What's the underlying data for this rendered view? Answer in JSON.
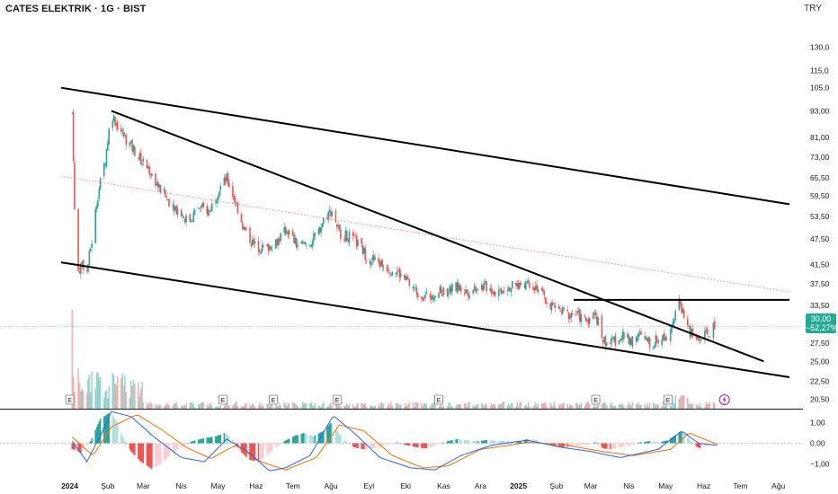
{
  "header": {
    "title": "CATES ELEKTRIK · 1G · BIST",
    "currency": "TRY"
  },
  "price_tag": {
    "price": "30,00",
    "change": "−52,27%"
  },
  "chart_data": [
    {
      "type": "candlestick",
      "title": "CATES ELEKTRIK · 1G · BIST",
      "scale": "log",
      "y_ticks": [
        "130,0",
        "115,0",
        "105,0",
        "93,00",
        "81,00",
        "73,00",
        "65,50",
        "59,50",
        "53,50",
        "47,50",
        "41,50",
        "37,50",
        "33,50",
        "30,00",
        "27,50",
        "25,00",
        "22,50",
        "20,50"
      ],
      "y_tick_values": [
        130,
        115,
        105,
        93,
        81,
        73,
        65.5,
        59.5,
        53.5,
        47.5,
        41.5,
        37.5,
        33.5,
        30,
        27.5,
        25,
        22.5,
        20.5
      ],
      "ylim": [
        19.5,
        150
      ],
      "x_ticks": [
        "2024",
        "Şub",
        "Mar",
        "Nis",
        "May",
        "Haz",
        "Tem",
        "Ağu",
        "Eyl",
        "Eki",
        "Kas",
        "Ara",
        "2025",
        "Şub",
        "Mar",
        "Nis",
        "May",
        "Haz",
        "Tem",
        "Ağu"
      ],
      "last_price": 30.0,
      "change_pct": -52.27,
      "price_path": [
        [
          "2024-01-03",
          92
        ],
        [
          "2024-01-05",
          55
        ],
        [
          "2024-01-08",
          40
        ],
        [
          "2024-01-11",
          42
        ],
        [
          "2024-01-15",
          40
        ],
        [
          "2024-01-19",
          47
        ],
        [
          "2024-01-24",
          60
        ],
        [
          "2024-01-30",
          72
        ],
        [
          "2024-02-04",
          92
        ],
        [
          "2024-02-10",
          85
        ],
        [
          "2024-02-16",
          80
        ],
        [
          "2024-02-22",
          76
        ],
        [
          "2024-02-28",
          72
        ],
        [
          "2024-03-06",
          68
        ],
        [
          "2024-03-14",
          62
        ],
        [
          "2024-03-22",
          58
        ],
        [
          "2024-03-30",
          55
        ],
        [
          "2024-04-07",
          52
        ],
        [
          "2024-04-15",
          56
        ],
        [
          "2024-04-24",
          55
        ],
        [
          "2024-05-02",
          62
        ],
        [
          "2024-05-08",
          65
        ],
        [
          "2024-05-15",
          58
        ],
        [
          "2024-05-22",
          50
        ],
        [
          "2024-05-30",
          46
        ],
        [
          "2024-06-08",
          45
        ],
        [
          "2024-06-18",
          47
        ],
        [
          "2024-06-26",
          50
        ],
        [
          "2024-07-04",
          46
        ],
        [
          "2024-07-12",
          46
        ],
        [
          "2024-07-20",
          48
        ],
        [
          "2024-07-28",
          54
        ],
        [
          "2024-08-02",
          55
        ],
        [
          "2024-08-08",
          49
        ],
        [
          "2024-08-16",
          48
        ],
        [
          "2024-08-24",
          46
        ],
        [
          "2024-08-31",
          43
        ],
        [
          "2024-09-08",
          42
        ],
        [
          "2024-09-16",
          41
        ],
        [
          "2024-09-24",
          40
        ],
        [
          "2024-10-02",
          38
        ],
        [
          "2024-10-10",
          36
        ],
        [
          "2024-10-18",
          35
        ],
        [
          "2024-10-26",
          36
        ],
        [
          "2024-11-03",
          36
        ],
        [
          "2024-11-12",
          37
        ],
        [
          "2024-11-20",
          36
        ],
        [
          "2024-11-28",
          37
        ],
        [
          "2024-12-06",
          37
        ],
        [
          "2024-12-14",
          36
        ],
        [
          "2024-12-22",
          37
        ],
        [
          "2024-12-30",
          37
        ],
        [
          "2025-01-08",
          38
        ],
        [
          "2025-01-16",
          37
        ],
        [
          "2025-01-24",
          34
        ],
        [
          "2025-02-01",
          33
        ],
        [
          "2025-02-09",
          32
        ],
        [
          "2025-02-17",
          32
        ],
        [
          "2025-02-25",
          31
        ],
        [
          "2025-03-05",
          32
        ],
        [
          "2025-03-11",
          28
        ],
        [
          "2025-03-17",
          27.5
        ],
        [
          "2025-03-25",
          28.5
        ],
        [
          "2025-04-02",
          28
        ],
        [
          "2025-04-10",
          28.5
        ],
        [
          "2025-04-18",
          27.5
        ],
        [
          "2025-04-25",
          28
        ],
        [
          "2025-05-01",
          28.5
        ],
        [
          "2025-05-07",
          31
        ],
        [
          "2025-05-12",
          34
        ],
        [
          "2025-05-16",
          32
        ],
        [
          "2025-05-21",
          29
        ],
        [
          "2025-05-27",
          28
        ],
        [
          "2025-06-01",
          28.5
        ],
        [
          "2025-06-06",
          29
        ],
        [
          "2025-06-10",
          30
        ]
      ],
      "trend_lines": [
        {
          "name": "upper",
          "from": [
            "2023-12-25",
            105
          ],
          "to": [
            "2025-08-10",
            57
          ]
        },
        {
          "name": "lower",
          "from": [
            "2023-12-25",
            42
          ],
          "to": [
            "2025-08-10",
            23
          ]
        },
        {
          "name": "mid_dotted",
          "from": [
            "2023-12-25",
            66
          ],
          "to": [
            "2025-08-10",
            36
          ]
        },
        {
          "name": "steep",
          "from": [
            "2024-02-04",
            93
          ],
          "to": [
            "2025-07-20",
            25
          ]
        },
        {
          "name": "horizontal",
          "from": [
            "2025-02-15",
            34.5
          ],
          "to": [
            "2025-08-10",
            34.5
          ]
        }
      ],
      "earnings_markers": [
        "2024-01-01",
        "2024-05-05",
        "2024-06-15",
        "2024-08-06",
        "2024-10-28",
        "2025-03-05",
        "2025-05-03"
      ],
      "dividend_marker": "2025-06-18"
    },
    {
      "type": "macd",
      "y_ticks": [
        "1,00",
        "0,00",
        "−1,00"
      ],
      "y_tick_values": [
        1,
        0,
        -1
      ],
      "ylim": [
        -1.6,
        1.6
      ],
      "histogram": [
        [
          "2024-01-04",
          -0.3
        ],
        [
          "2024-01-10",
          -0.45
        ],
        [
          "2024-01-18",
          0.1
        ],
        [
          "2024-01-26",
          1.2
        ],
        [
          "2024-02-03",
          1.5
        ],
        [
          "2024-02-08",
          1.1
        ],
        [
          "2024-02-14",
          0.2
        ],
        [
          "2024-02-20",
          -0.4
        ],
        [
          "2024-02-28",
          -0.9
        ],
        [
          "2024-03-08",
          -1.25
        ],
        [
          "2024-03-16",
          -1.0
        ],
        [
          "2024-03-24",
          -0.5
        ],
        [
          "2024-04-01",
          -0.2
        ],
        [
          "2024-04-10",
          0.1
        ],
        [
          "2024-04-20",
          0.25
        ],
        [
          "2024-04-30",
          0.35
        ],
        [
          "2024-05-06",
          0.5
        ],
        [
          "2024-05-12",
          0.25
        ],
        [
          "2024-05-18",
          -0.3
        ],
        [
          "2024-05-26",
          -0.8
        ],
        [
          "2024-06-03",
          -0.9
        ],
        [
          "2024-06-10",
          -0.6
        ],
        [
          "2024-06-17",
          -0.2
        ],
        [
          "2024-06-24",
          0.1
        ],
        [
          "2024-07-02",
          0.35
        ],
        [
          "2024-07-10",
          0.5
        ],
        [
          "2024-07-18",
          0.35
        ],
        [
          "2024-07-26",
          0.6
        ],
        [
          "2024-08-01",
          1.0
        ],
        [
          "2024-08-06",
          0.6
        ],
        [
          "2024-08-12",
          0.15
        ],
        [
          "2024-08-20",
          -0.2
        ],
        [
          "2024-08-28",
          -0.3
        ],
        [
          "2024-09-06",
          -0.25
        ],
        [
          "2024-09-15",
          -0.1
        ],
        [
          "2024-09-24",
          0.05
        ],
        [
          "2024-10-02",
          -0.1
        ],
        [
          "2024-10-10",
          -0.2
        ],
        [
          "2024-10-18",
          -0.25
        ],
        [
          "2024-10-26",
          -0.1
        ],
        [
          "2024-11-04",
          0.1
        ],
        [
          "2024-11-12",
          0.2
        ],
        [
          "2024-11-20",
          0.15
        ],
        [
          "2024-11-28",
          0.1
        ],
        [
          "2024-12-06",
          0.15
        ],
        [
          "2024-12-14",
          0.12
        ],
        [
          "2024-12-22",
          0.1
        ],
        [
          "2024-12-30",
          0.05
        ],
        [
          "2025-01-08",
          0.2
        ],
        [
          "2025-01-16",
          0.15
        ],
        [
          "2025-01-24",
          -0.05
        ],
        [
          "2025-02-01",
          -0.15
        ],
        [
          "2025-02-09",
          -0.2
        ],
        [
          "2025-02-17",
          -0.12
        ],
        [
          "2025-02-25",
          -0.1
        ],
        [
          "2025-03-05",
          0.05
        ],
        [
          "2025-03-11",
          -0.25
        ],
        [
          "2025-03-17",
          -0.3
        ],
        [
          "2025-03-25",
          -0.2
        ],
        [
          "2025-04-02",
          -0.1
        ],
        [
          "2025-04-10",
          0.05
        ],
        [
          "2025-04-18",
          0.1
        ],
        [
          "2025-04-26",
          0.05
        ],
        [
          "2025-05-03",
          0.15
        ],
        [
          "2025-05-09",
          0.4
        ],
        [
          "2025-05-14",
          0.55
        ],
        [
          "2025-05-19",
          0.3
        ],
        [
          "2025-05-24",
          -0.1
        ],
        [
          "2025-05-29",
          -0.25
        ],
        [
          "2025-06-03",
          -0.15
        ],
        [
          "2025-06-08",
          0.02
        ],
        [
          "2025-06-12",
          0.05
        ]
      ],
      "macd_line": [
        [
          "2024-01-03",
          0.1
        ],
        [
          "2024-01-15",
          -0.9
        ],
        [
          "2024-01-28",
          0.6
        ],
        [
          "2024-02-04",
          1.55
        ],
        [
          "2024-02-20",
          1.3
        ],
        [
          "2024-03-10",
          0.3
        ],
        [
          "2024-04-01",
          -0.7
        ],
        [
          "2024-04-20",
          -0.9
        ],
        [
          "2024-05-08",
          0.2
        ],
        [
          "2024-05-25",
          -0.4
        ],
        [
          "2024-06-12",
          -1.35
        ],
        [
          "2024-06-25",
          -1.2
        ],
        [
          "2024-07-15",
          -0.6
        ],
        [
          "2024-08-03",
          1.35
        ],
        [
          "2024-08-20",
          0.5
        ],
        [
          "2024-09-10",
          -0.7
        ],
        [
          "2024-10-05",
          -1.2
        ],
        [
          "2024-10-25",
          -1.3
        ],
        [
          "2024-11-15",
          -0.6
        ],
        [
          "2024-12-10",
          -0.1
        ],
        [
          "2025-01-08",
          0.15
        ],
        [
          "2025-02-05",
          -0.2
        ],
        [
          "2025-03-01",
          -0.4
        ],
        [
          "2025-03-25",
          -0.7
        ],
        [
          "2025-04-25",
          -0.3
        ],
        [
          "2025-05-14",
          0.6
        ],
        [
          "2025-05-28",
          0.0
        ],
        [
          "2025-06-12",
          -0.1
        ]
      ],
      "signal_line": [
        [
          "2024-01-03",
          0.3
        ],
        [
          "2024-01-20",
          -0.6
        ],
        [
          "2024-02-04",
          0.8
        ],
        [
          "2024-02-25",
          1.4
        ],
        [
          "2024-03-15",
          0.7
        ],
        [
          "2024-04-05",
          -0.2
        ],
        [
          "2024-04-25",
          -0.75
        ],
        [
          "2024-05-15",
          -0.1
        ],
        [
          "2024-06-05",
          -0.9
        ],
        [
          "2024-06-25",
          -1.3
        ],
        [
          "2024-07-20",
          -0.7
        ],
        [
          "2024-08-08",
          0.9
        ],
        [
          "2024-08-28",
          0.6
        ],
        [
          "2024-09-20",
          -0.6
        ],
        [
          "2024-10-15",
          -1.2
        ],
        [
          "2024-11-05",
          -1.1
        ],
        [
          "2024-12-01",
          -0.3
        ],
        [
          "2025-01-10",
          0.05
        ],
        [
          "2025-02-10",
          -0.1
        ],
        [
          "2025-03-10",
          -0.4
        ],
        [
          "2025-04-05",
          -0.6
        ],
        [
          "2025-05-05",
          -0.3
        ],
        [
          "2025-05-20",
          0.5
        ],
        [
          "2025-06-12",
          -0.05
        ]
      ]
    }
  ],
  "colors": {
    "up": "#26a69a",
    "down": "#ef5350",
    "macd_line": "#2962ff",
    "signal_line": "#ff6d00",
    "trend": "#000000",
    "price_tag": "#22ab94"
  }
}
